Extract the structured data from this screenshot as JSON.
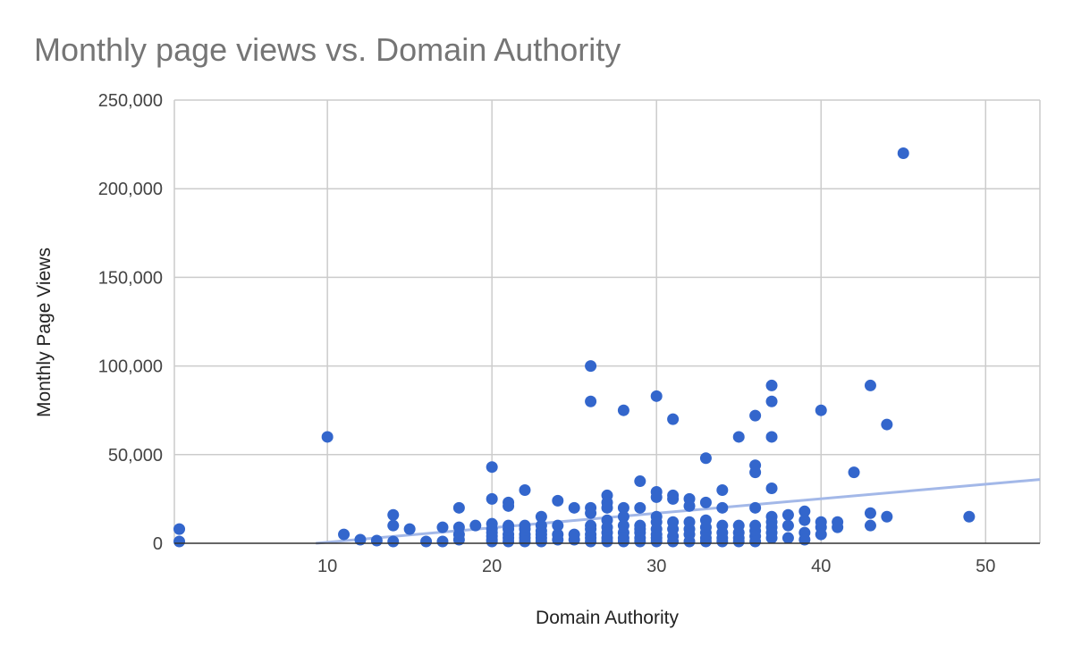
{
  "chart_data": {
    "type": "scatter",
    "title": "Monthly page views vs. Domain Authority",
    "xlabel": "Domain Authority",
    "ylabel": "Monthly Page Views",
    "xlim": [
      0.7,
      53.3
    ],
    "ylim": [
      0,
      250000
    ],
    "x_ticks": [
      10,
      20,
      30,
      40,
      50
    ],
    "y_ticks": [
      0,
      50000,
      100000,
      150000,
      200000,
      250000
    ],
    "y_tick_labels": [
      "0",
      "50,000",
      "100,000",
      "150,000",
      "200,000",
      "250,000"
    ],
    "grid": true,
    "legend": "none",
    "colors": {
      "points": "#3366cc",
      "trendline": "#a3b8e8",
      "grid": "#cccccc",
      "title": "#757575"
    },
    "trendline": {
      "type": "linear",
      "x": [
        9.3,
        53.3
      ],
      "y": [
        0,
        36000
      ]
    },
    "series": [
      {
        "x": [
          1,
          1,
          10,
          11,
          12,
          13,
          14,
          14,
          14,
          15,
          16,
          17,
          17,
          18,
          18,
          18,
          18,
          19,
          20,
          20,
          20,
          20,
          20,
          20,
          20,
          20,
          21,
          21,
          21,
          21,
          21,
          21,
          21,
          22,
          22,
          22,
          22,
          22,
          22,
          23,
          23,
          23,
          23,
          23,
          23,
          24,
          24,
          24,
          24,
          25,
          25,
          25,
          26,
          26,
          26,
          26,
          26,
          26,
          26,
          26,
          26,
          27,
          27,
          27,
          27,
          27,
          27,
          27,
          27,
          28,
          28,
          28,
          28,
          28,
          28,
          28,
          29,
          29,
          29,
          29,
          29,
          29,
          29,
          30,
          30,
          30,
          30,
          30,
          30,
          30,
          30,
          30,
          31,
          31,
          31,
          31,
          31,
          31,
          31,
          32,
          32,
          32,
          32,
          32,
          32,
          33,
          33,
          33,
          33,
          33,
          33,
          33,
          34,
          34,
          34,
          34,
          34,
          34,
          35,
          35,
          35,
          35,
          35,
          36,
          36,
          36,
          36,
          36,
          36,
          36,
          36,
          37,
          37,
          37,
          37,
          37,
          37,
          37,
          37,
          37,
          38,
          38,
          38,
          39,
          39,
          39,
          39,
          40,
          40,
          40,
          40,
          41,
          41,
          42,
          43,
          43,
          43,
          44,
          44,
          45,
          49
        ],
        "y": [
          8000,
          1000,
          60000,
          5000,
          2000,
          1500,
          16000,
          10000,
          1000,
          8000,
          1000,
          9000,
          1000,
          20000,
          9000,
          5000,
          2000,
          10000,
          43000,
          25000,
          11000,
          8000,
          6000,
          4000,
          2000,
          1000,
          23000,
          21000,
          10000,
          8000,
          5000,
          3000,
          1000,
          30000,
          10000,
          8000,
          5000,
          3000,
          1000,
          15000,
          10000,
          7000,
          5000,
          3000,
          1000,
          24000,
          10000,
          5000,
          2000,
          20000,
          5000,
          2000,
          100000,
          80000,
          20000,
          17000,
          10000,
          8000,
          5000,
          3000,
          1000,
          27000,
          23000,
          20000,
          13000,
          9000,
          6000,
          3000,
          1000,
          75000,
          20000,
          15000,
          10000,
          6000,
          3000,
          1000,
          35000,
          20000,
          10000,
          8000,
          6000,
          3000,
          1000,
          83000,
          29000,
          26000,
          15000,
          12000,
          8000,
          5000,
          3000,
          1000,
          70000,
          27000,
          25000,
          12000,
          8000,
          4000,
          1000,
          25000,
          21000,
          12000,
          8000,
          5000,
          1000,
          48000,
          23000,
          13000,
          9000,
          6000,
          3000,
          1000,
          30000,
          20000,
          10000,
          6000,
          3000,
          1000,
          60000,
          10000,
          6000,
          3000,
          1000,
          72000,
          44000,
          40000,
          20000,
          10000,
          7000,
          4000,
          1000,
          89000,
          80000,
          60000,
          31000,
          15000,
          12000,
          9000,
          6000,
          3000,
          16000,
          10000,
          3000,
          18000,
          13000,
          6000,
          2000,
          75000,
          12000,
          9000,
          5000,
          12000,
          9000,
          40000,
          89000,
          17000,
          10000,
          67000,
          15000,
          220000,
          15000
        ]
      }
    ]
  }
}
